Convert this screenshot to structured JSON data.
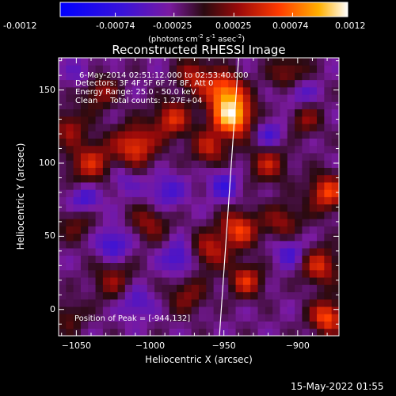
{
  "colorbar": {
    "ticks": [
      "-0.0012",
      "-0.00074",
      "-0.00025",
      "0.00025",
      "0.00074",
      "0.0012"
    ],
    "units_prefix": "(photons cm",
    "units_exp1": "-2",
    "units_mid": " s",
    "units_exp2": "-1",
    "units_mid2": " asec",
    "units_exp3": "-2",
    "units_suffix": ")"
  },
  "title": "Reconstructed RHESSI Image",
  "info": {
    "line1": "6-May-2014 02:51:12.000 to 02:53:40.000",
    "line2": "Detectors: 3F 4F 5F 6F 7F 8F, Att 0",
    "line3": "Energy Range: 25.0 - 50.0 keV",
    "line4": "Clean     Total counts: 1.27E+04"
  },
  "peak_label": "Position of Peak = [-944,132]",
  "footer_timestamp": "15-May-2022 01:55",
  "colors": {
    "background": "#000000",
    "limb_line": "#ffffff",
    "axis": "#ffffff"
  },
  "chart_data": {
    "type": "heatmap",
    "title": "Reconstructed RHESSI Image",
    "xlabel": "Heliocentric X (arcsec)",
    "ylabel": "Heliocentric Y (arcsec)",
    "xlim": [
      -1062,
      -872
    ],
    "ylim": [
      -18,
      172
    ],
    "x_ticks": [
      -1050,
      -1000,
      -950,
      -900
    ],
    "x_tick_labels": [
      "−1050",
      "−1000",
      "−950",
      "−900"
    ],
    "y_ticks": [
      0,
      50,
      100,
      150
    ],
    "y_tick_labels": [
      "0",
      "50",
      "100",
      "150"
    ],
    "zlim": [
      -0.0012,
      0.0012
    ],
    "peak": {
      "x": -944,
      "y": 132
    },
    "limb_line": [
      [
        -953,
        -18
      ],
      [
        -940,
        172
      ]
    ],
    "blobs": [
      {
        "x": -944,
        "y": 132,
        "v": 0.00125,
        "s": 10
      },
      {
        "x": -950,
        "y": 150,
        "v": 0.0009,
        "s": 9
      },
      {
        "x": -1010,
        "y": 112,
        "v": 0.0008,
        "s": 10
      },
      {
        "x": -1040,
        "y": 100,
        "v": 0.00065,
        "s": 11
      },
      {
        "x": -985,
        "y": 130,
        "v": 0.0007,
        "s": 9
      },
      {
        "x": -960,
        "y": 110,
        "v": 0.0006,
        "s": 8
      },
      {
        "x": -920,
        "y": 100,
        "v": 0.0006,
        "s": 9
      },
      {
        "x": -940,
        "y": 55,
        "v": 0.0008,
        "s": 9
      },
      {
        "x": -960,
        "y": 40,
        "v": 0.0006,
        "s": 9
      },
      {
        "x": -935,
        "y": 20,
        "v": 0.0007,
        "s": 8
      },
      {
        "x": -880,
        "y": 80,
        "v": 0.0008,
        "s": 9
      },
      {
        "x": -885,
        "y": 30,
        "v": 0.0007,
        "s": 9
      },
      {
        "x": -880,
        "y": -5,
        "v": 0.0009,
        "s": 8
      },
      {
        "x": -905,
        "y": 160,
        "v": 0.0006,
        "s": 9
      },
      {
        "x": -1035,
        "y": 150,
        "v": 0.00055,
        "s": 9
      },
      {
        "x": -1000,
        "y": 60,
        "v": 0.0005,
        "s": 9
      },
      {
        "x": -1050,
        "y": 60,
        "v": 0.0004,
        "s": 9
      },
      {
        "x": -1025,
        "y": 20,
        "v": 0.00045,
        "s": 10
      },
      {
        "x": -975,
        "y": 10,
        "v": 0.00045,
        "s": 9
      },
      {
        "x": -910,
        "y": 60,
        "v": 0.0005,
        "s": 9
      },
      {
        "x": -1055,
        "y": 125,
        "v": 0.0005,
        "s": 8
      },
      {
        "x": -970,
        "y": 160,
        "v": 0.0006,
        "s": 8
      },
      {
        "x": -895,
        "y": 130,
        "v": 0.00045,
        "s": 8
      },
      {
        "x": -1055,
        "y": -5,
        "v": 0.00035,
        "s": 8
      },
      {
        "x": -990,
        "y": 80,
        "v": -0.0004,
        "s": 9
      },
      {
        "x": -1025,
        "y": 45,
        "v": -0.0005,
        "s": 8
      },
      {
        "x": -1045,
        "y": 75,
        "v": -0.0005,
        "s": 8
      },
      {
        "x": -980,
        "y": 35,
        "v": -0.0005,
        "s": 8
      },
      {
        "x": -950,
        "y": 85,
        "v": -0.0004,
        "s": 8
      },
      {
        "x": -900,
        "y": 150,
        "v": -0.0005,
        "s": 8
      },
      {
        "x": -905,
        "y": 40,
        "v": -0.0004,
        "s": 8
      },
      {
        "x": -1045,
        "y": 160,
        "v": -0.0003,
        "s": 8
      },
      {
        "x": -1010,
        "y": 5,
        "v": -0.0004,
        "s": 8
      },
      {
        "x": -920,
        "y": 120,
        "v": -0.0004,
        "s": 8
      },
      {
        "x": -1020,
        "y": 90,
        "v": -0.0003,
        "s": 8
      }
    ]
  }
}
